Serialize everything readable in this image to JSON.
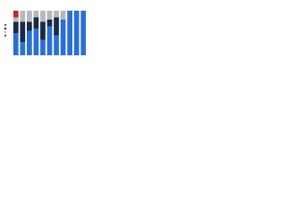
{
  "chart_data": {
    "type": "stacked_bar",
    "categories": [
      null,
      null,
      null,
      null,
      null,
      null,
      null,
      null,
      null,
      null,
      null
    ],
    "series": [
      {
        "color": "#2a6fd6",
        "values": [
          50,
          30,
          55,
          60,
          35,
          65,
          45,
          80,
          100,
          100,
          100
        ]
      },
      {
        "color": "#1b2a44",
        "values": [
          25,
          45,
          20,
          25,
          40,
          15,
          40,
          0,
          0,
          0,
          0
        ]
      },
      {
        "color": "#b5b8bd",
        "values": [
          10,
          25,
          25,
          15,
          25,
          20,
          15,
          20,
          0,
          0,
          0
        ]
      },
      {
        "color": "#c8242b",
        "values": [
          15,
          0,
          0,
          0,
          0,
          0,
          0,
          0,
          0,
          0,
          0
        ]
      }
    ],
    "ylim": [
      0,
      100
    ]
  }
}
